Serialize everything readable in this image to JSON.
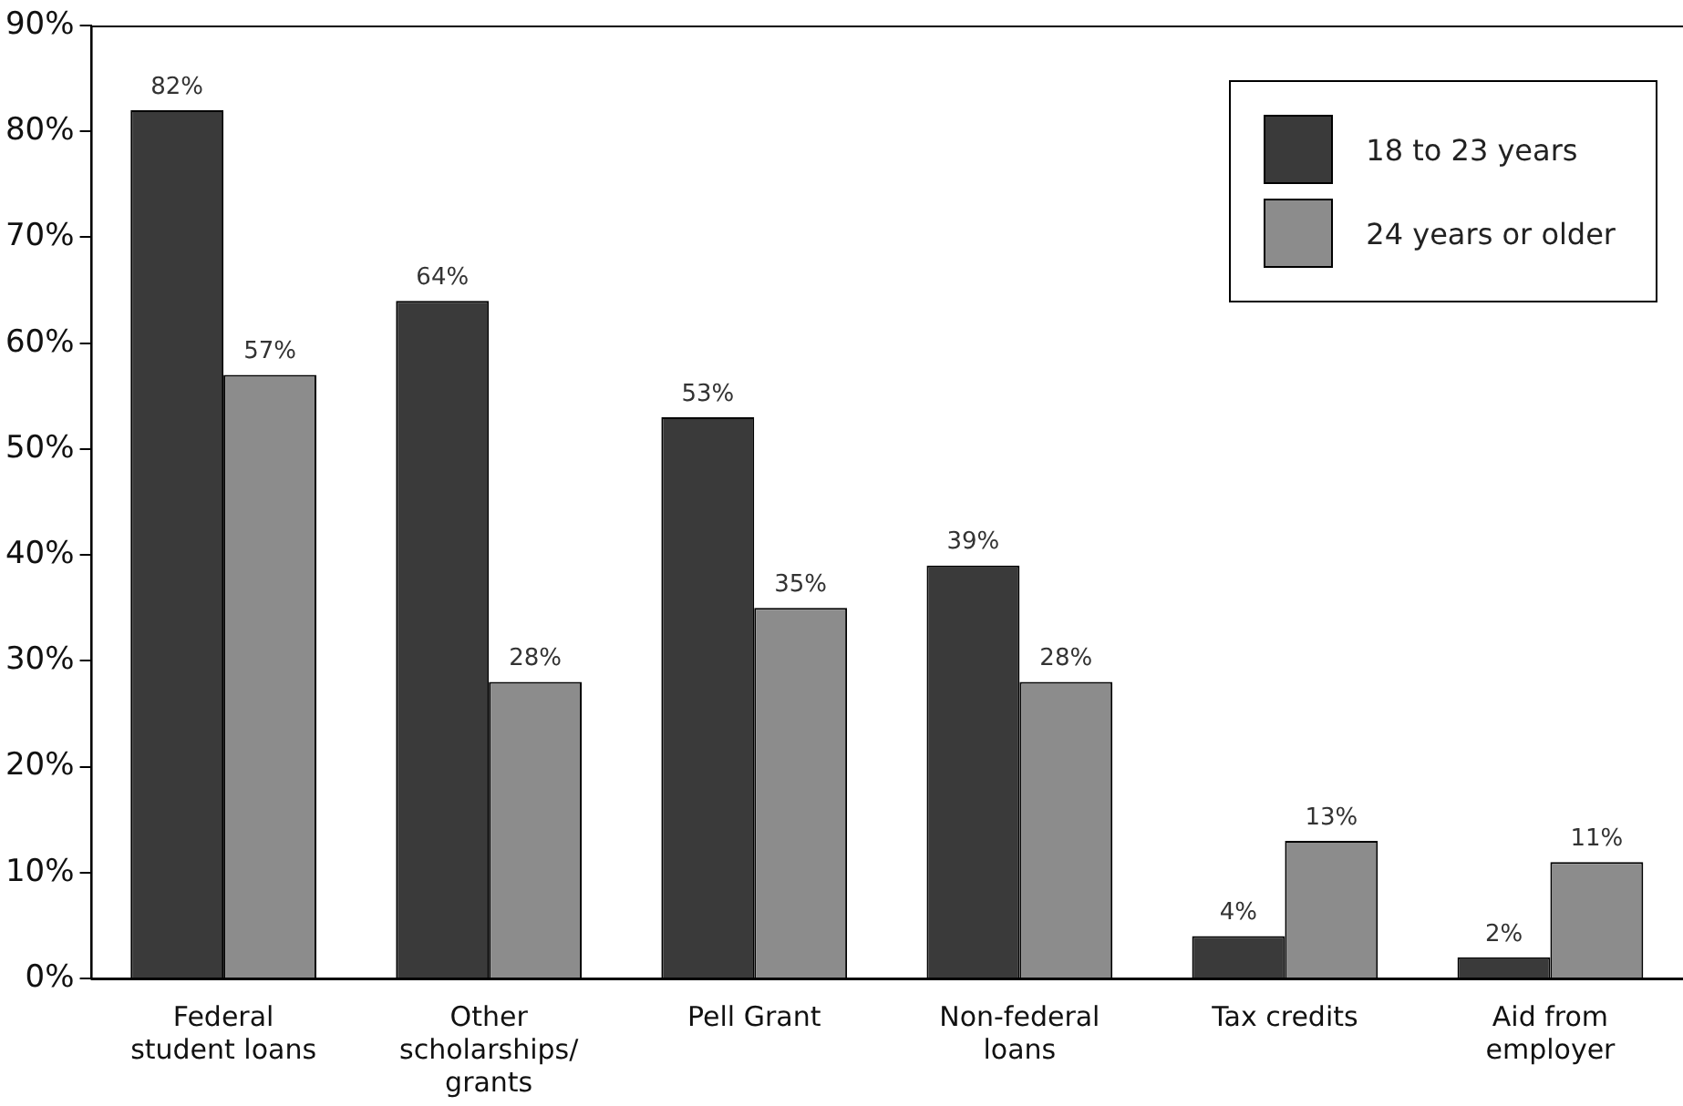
{
  "chart_data": {
    "type": "bar",
    "categories": [
      "Federal student loans",
      "Other scholarships/ grants",
      "Pell Grant",
      "Non-federal loans",
      "Tax credits",
      "Aid from employer"
    ],
    "series": [
      {
        "name": "18 to 23 years",
        "color": "#3a3a3a",
        "values": [
          82,
          64,
          53,
          39,
          4,
          2
        ],
        "value_labels": [
          "82%",
          "64%",
          "53%",
          "39%",
          "4%",
          "2%"
        ]
      },
      {
        "name": "24 years or older",
        "color": "#8c8c8c",
        "values": [
          57,
          28,
          35,
          28,
          13,
          11
        ],
        "value_labels": [
          "57%",
          "28%",
          "35%",
          "28%",
          "13%",
          "11%"
        ]
      }
    ],
    "ylim": [
      0,
      90
    ],
    "yticks": [
      {
        "value": 0,
        "label": "0%"
      },
      {
        "value": 10,
        "label": "10%"
      },
      {
        "value": 20,
        "label": "20%"
      },
      {
        "value": 30,
        "label": "30%"
      },
      {
        "value": 40,
        "label": "40%"
      },
      {
        "value": 50,
        "label": "50%"
      },
      {
        "value": 60,
        "label": "60%"
      },
      {
        "value": 70,
        "label": "70%"
      },
      {
        "value": 80,
        "label": "80%"
      },
      {
        "value": 90,
        "label": "90%"
      }
    ],
    "grid": false,
    "legend": "top right"
  }
}
